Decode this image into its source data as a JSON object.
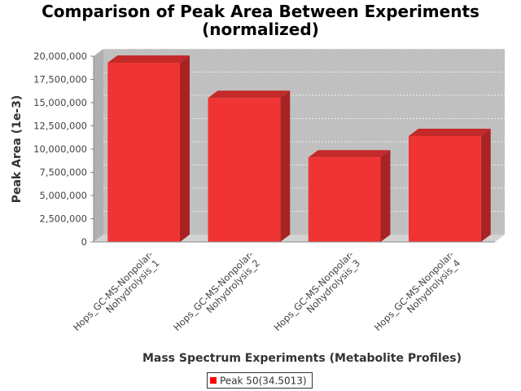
{
  "chart_data": {
    "type": "bar",
    "title": "Comparison of Peak Area Between Experiments",
    "subtitle": "(normalized)",
    "xlabel": "Mass Spectrum Experiments (Metabolite Profiles)",
    "ylabel": "Peak Area (1e-3)",
    "categories": [
      [
        "Hops_GC-MS-Nonpolar-",
        "Nohydrolysis_1"
      ],
      [
        "Hops_GC-MS-Nonpolar-",
        "Nohydrolysis_2"
      ],
      [
        "Hops_GC-MS-Nonpolar-",
        "Nohydrolysis_3"
      ],
      [
        "Hops_GC-MS-Nonpolar-",
        "Nohydrolysis_4"
      ]
    ],
    "series": [
      {
        "name": "Peak 50(34.5013)",
        "values": [
          19300000,
          15500000,
          9100000,
          11400000
        ]
      }
    ],
    "ylim": [
      0,
      20000000
    ],
    "yticks": [
      0,
      2500000,
      5000000,
      7500000,
      10000000,
      12500000,
      15000000,
      17500000,
      20000000
    ],
    "ytick_labels": [
      "0",
      "2,500,000",
      "5,000,000",
      "7,500,000",
      "10,000,000",
      "12,500,000",
      "15,000,000",
      "17,500,000",
      "20,000,000"
    ],
    "grid": true,
    "legend_position": "bottom",
    "colors": {
      "bar_front": "#f03434",
      "bar_top": "#c42a2a",
      "bar_side": "#a82424",
      "plot_bg": "#c0c0c0",
      "plot_wall": "#b0b0b0",
      "plot_floor": "#d3d3d3",
      "legend_swatch": "#ff0000"
    }
  }
}
